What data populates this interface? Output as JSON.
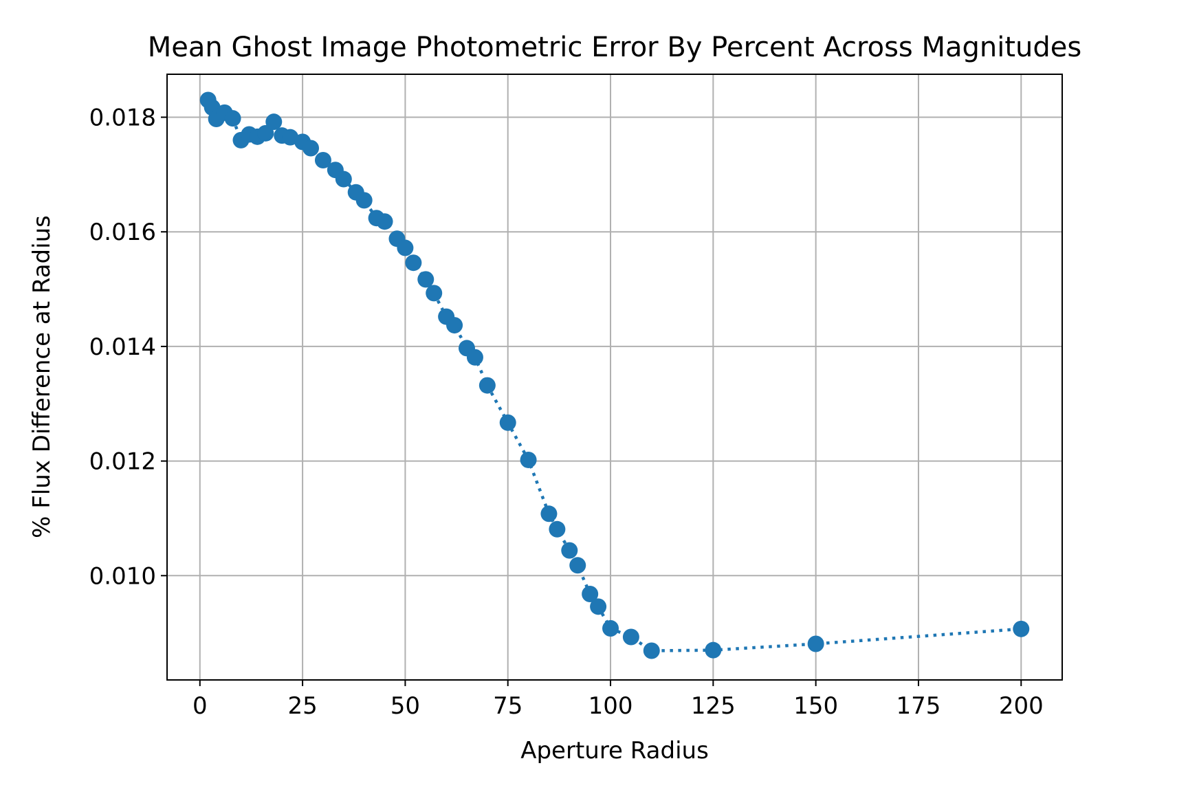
{
  "chart_data": {
    "type": "line",
    "title": "Mean Ghost Image Photometric Error By Percent Across Magnitudes",
    "xlabel": "Aperture Radius",
    "ylabel": "% Flux Difference at Radius",
    "xlim": [
      -8,
      210
    ],
    "ylim": [
      0.00818,
      0.01875
    ],
    "xticks": [
      0,
      25,
      50,
      75,
      100,
      125,
      150,
      175,
      200
    ],
    "xtick_labels": [
      "0",
      "25",
      "50",
      "75",
      "100",
      "125",
      "150",
      "175",
      "200"
    ],
    "yticks": [
      0.01,
      0.012,
      0.014,
      0.016,
      0.018
    ],
    "ytick_labels": [
      "0.010",
      "0.012",
      "0.014",
      "0.016",
      "0.018"
    ],
    "grid": true,
    "line_style": "dotted",
    "marker": "circle",
    "series_color": "#1f77b4",
    "series": [
      {
        "x": [
          2,
          3,
          4,
          6,
          8,
          10,
          12,
          14,
          16,
          18,
          20,
          22,
          25,
          27,
          30,
          33,
          35,
          38,
          40,
          43,
          45,
          48,
          50,
          52,
          55,
          57,
          60,
          62,
          65,
          67,
          70,
          75,
          80,
          85,
          87,
          90,
          92,
          95,
          97,
          100,
          105,
          110,
          125,
          150,
          200
        ],
        "y": [
          0.0183,
          0.01817,
          0.01797,
          0.01808,
          0.01798,
          0.0176,
          0.0177,
          0.01766,
          0.01772,
          0.01792,
          0.01768,
          0.01765,
          0.01757,
          0.01746,
          0.01725,
          0.01708,
          0.01692,
          0.01669,
          0.01655,
          0.01624,
          0.01618,
          0.01588,
          0.01572,
          0.01546,
          0.01517,
          0.01493,
          0.01452,
          0.01437,
          0.01397,
          0.01381,
          0.01332,
          0.01267,
          0.01202,
          0.01108,
          0.01081,
          0.01044,
          0.01018,
          0.00968,
          0.00946,
          0.00908,
          0.00893,
          0.00869,
          0.0087,
          0.00881,
          0.00907
        ]
      }
    ]
  }
}
